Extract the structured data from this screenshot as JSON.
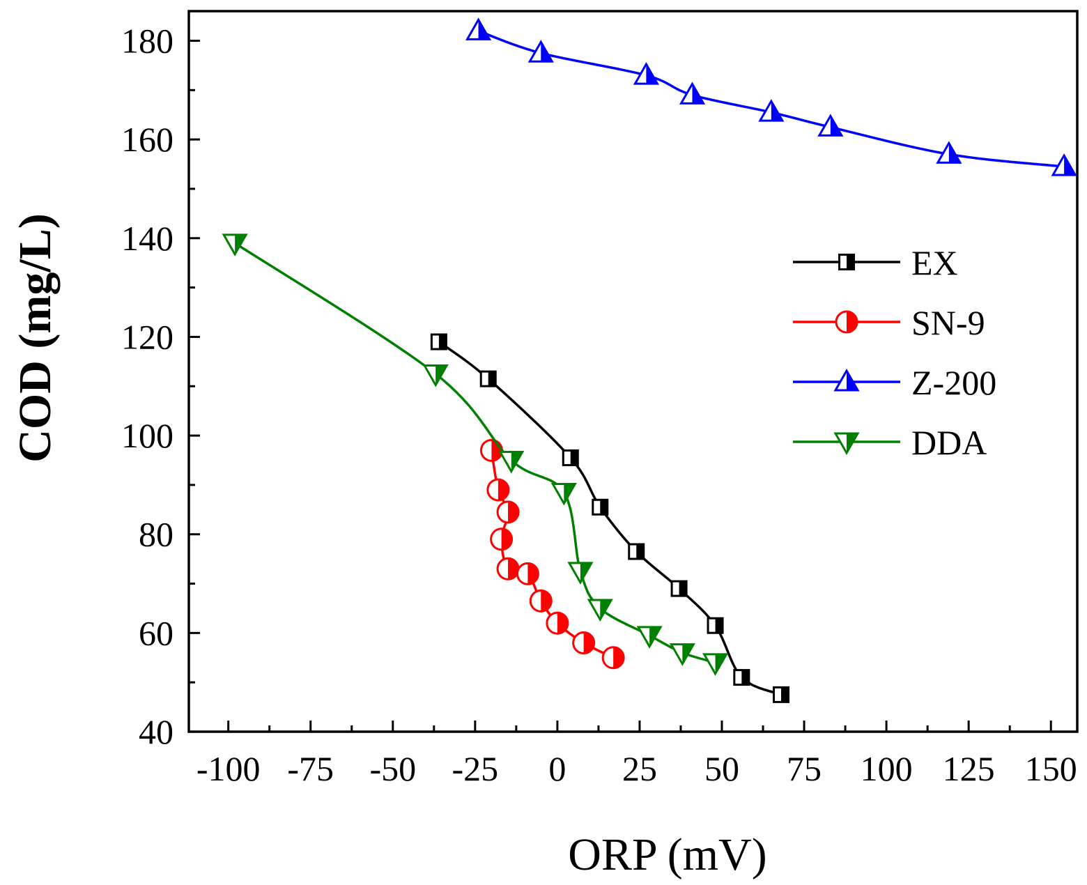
{
  "chart_data": {
    "type": "line",
    "title": "",
    "xlabel": "ORP  (mV)",
    "ylabel": "COD (mg/L)",
    "xlim": [
      -112,
      158
    ],
    "ylim": [
      40,
      186
    ],
    "xticks": [
      -100,
      -75,
      -50,
      -25,
      0,
      25,
      50,
      75,
      100,
      125,
      150
    ],
    "xtick_labels": [
      "-100",
      "-75",
      "-50",
      "-25",
      "0",
      "25",
      "50",
      "75",
      "100",
      "125",
      "150"
    ],
    "yticks": [
      40,
      60,
      80,
      100,
      120,
      140,
      160,
      180
    ],
    "ytick_labels": [
      "40",
      "60",
      "80",
      "100",
      "120",
      "140",
      "160",
      "180"
    ],
    "grid": false,
    "legend_position": "right-middle",
    "series": [
      {
        "name": "EX",
        "color": "#000000",
        "marker": "half-filled-square",
        "x": [
          -36,
          -21,
          4,
          13,
          24,
          37,
          48,
          56,
          68
        ],
        "y": [
          119,
          111.5,
          95.5,
          85.5,
          76.5,
          69,
          61.5,
          51,
          47.5
        ]
      },
      {
        "name": "SN-9",
        "color": "#ff0000",
        "marker": "half-filled-circle",
        "x": [
          -20,
          -18,
          -15,
          -17,
          -15,
          -9,
          -5,
          0,
          8,
          17
        ],
        "y": [
          97,
          89,
          84.5,
          79,
          73,
          72,
          66.5,
          62,
          58,
          55
        ]
      },
      {
        "name": "Z-200",
        "color": "#0000ff",
        "marker": "half-filled-triangle-up",
        "x": [
          -24,
          -5,
          27,
          41,
          65,
          83,
          119,
          154
        ],
        "y": [
          182,
          177.5,
          173,
          169,
          165.5,
          162.5,
          157,
          154.5
        ]
      },
      {
        "name": "DDA",
        "color": "#008000",
        "marker": "half-filled-triangle-down",
        "x": [
          -98,
          -37,
          -14,
          2,
          7,
          13,
          28,
          38,
          48
        ],
        "y": [
          139,
          112.5,
          95,
          88.5,
          72.5,
          65,
          59.5,
          56,
          54
        ]
      }
    ]
  }
}
